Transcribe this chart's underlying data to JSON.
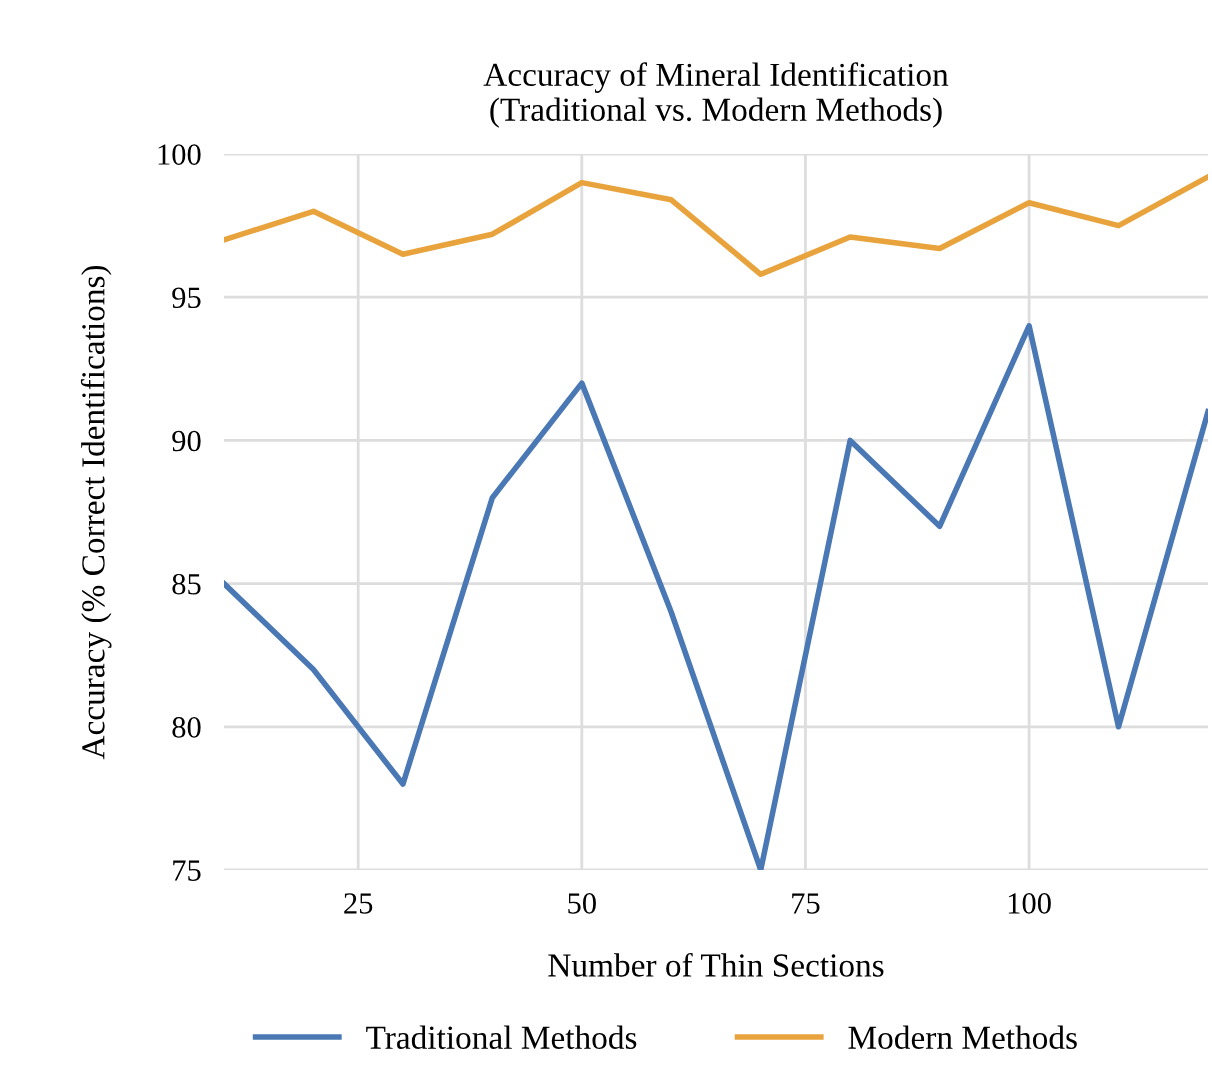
{
  "chart_data": {
    "type": "line",
    "title": "Accuracy of Mineral Identification\n(Traditional vs. Modern Methods)",
    "xlabel": "Number of Thin Sections",
    "ylabel": "Accuracy (% Correct Identifications)",
    "x": [
      10,
      20,
      30,
      40,
      50,
      60,
      70,
      80,
      90,
      100,
      110,
      120
    ],
    "series": [
      {
        "name": "Traditional Methods",
        "color": "#4a78b5",
        "values": [
          85,
          82,
          78,
          88,
          92,
          84,
          75,
          90,
          87,
          94,
          80,
          91
        ]
      },
      {
        "name": "Modern Methods",
        "color": "#e8a33c",
        "values": [
          97,
          98,
          96.5,
          97.2,
          99,
          98.4,
          95.8,
          97.1,
          96.7,
          98.3,
          97.5,
          99.2
        ]
      }
    ],
    "xlim": [
      10,
      120
    ],
    "xticks": [
      25,
      50,
      75,
      100
    ],
    "ylim": [
      75,
      100
    ],
    "yticks": [
      75,
      80,
      85,
      90,
      95,
      100
    ],
    "grid": true,
    "legend": "bottom",
    "line_style": "solid",
    "marker": "none"
  }
}
